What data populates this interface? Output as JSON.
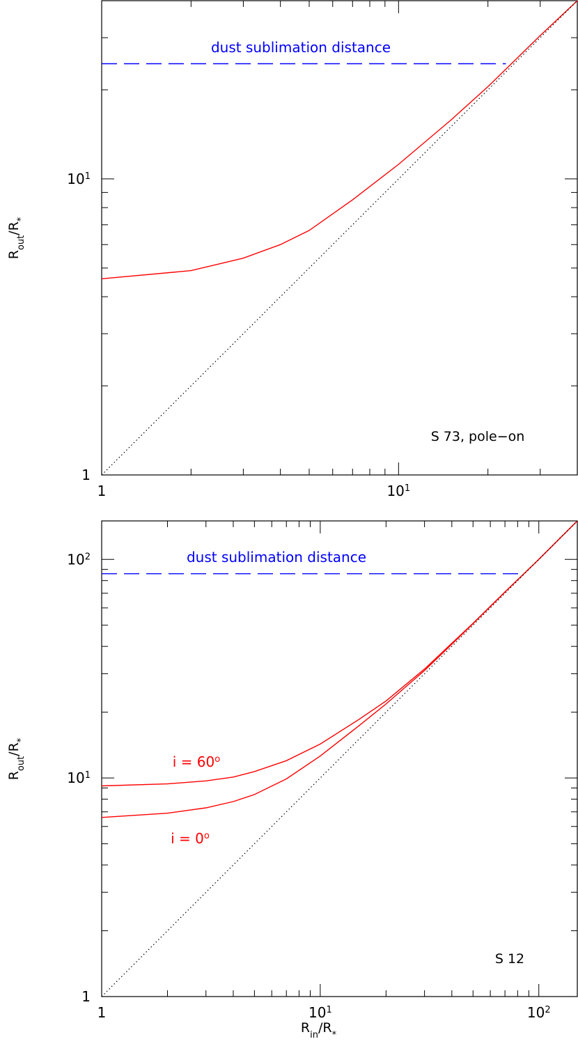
{
  "chart_data": [
    {
      "type": "line",
      "xscale": "log",
      "yscale": "log",
      "xlim": [
        1,
        40
      ],
      "ylim": [
        1,
        40
      ],
      "xlabel": "",
      "ylabel": {
        "main": "R",
        "sub": "out",
        "tail": "/R",
        "subtail": "*"
      },
      "x_ticks": [
        {
          "value": 1,
          "base": "1",
          "exp": ""
        },
        {
          "value": 10,
          "base": "10",
          "exp": "1"
        }
      ],
      "y_ticks": [
        {
          "value": 1,
          "base": "1",
          "exp": ""
        },
        {
          "value": 10,
          "base": "10",
          "exp": "1"
        }
      ],
      "annotations": [
        {
          "id": "dust",
          "text": "dust sublimation distance",
          "color": "#0000ff"
        },
        {
          "id": "label",
          "text": "S 73, pole−on",
          "color": "#000000"
        }
      ],
      "series": [
        {
          "style": "dashed",
          "color": "#0000ff",
          "x": [
            1,
            23
          ],
          "y": [
            24.5,
            24.5
          ]
        },
        {
          "style": "solid",
          "color": "#ff0000",
          "x": [
            1,
            2,
            3,
            4,
            5,
            7,
            10,
            15,
            20,
            25,
            30,
            40
          ],
          "y": [
            4.6,
            4.9,
            5.4,
            6.0,
            6.7,
            8.5,
            11.2,
            15.8,
            20.5,
            25.5,
            30.5,
            40
          ]
        },
        {
          "style": "dotted",
          "color": "#000000",
          "x": [
            1,
            40
          ],
          "y": [
            1,
            40
          ]
        }
      ]
    },
    {
      "type": "line",
      "xscale": "log",
      "yscale": "log",
      "xlim": [
        1,
        150
      ],
      "ylim": [
        1,
        150
      ],
      "xlabel": {
        "main": "R",
        "sub": "in",
        "tail": "/R",
        "subtail": "*"
      },
      "ylabel": {
        "main": "R",
        "sub": "out",
        "tail": "/R",
        "subtail": "*"
      },
      "x_ticks": [
        {
          "value": 1,
          "base": "1",
          "exp": ""
        },
        {
          "value": 10,
          "base": "10",
          "exp": "1"
        },
        {
          "value": 100,
          "base": "10",
          "exp": "2"
        }
      ],
      "y_ticks": [
        {
          "value": 1,
          "base": "1",
          "exp": ""
        },
        {
          "value": 10,
          "base": "10",
          "exp": "1"
        },
        {
          "value": 100,
          "base": "10",
          "exp": "2"
        }
      ],
      "annotations": [
        {
          "id": "dust",
          "text": "dust sublimation distance",
          "color": "#0000ff"
        },
        {
          "id": "label",
          "text": "S 12",
          "color": "#000000"
        },
        {
          "id": "i60",
          "text": "i = 60",
          "sup": "o",
          "color": "#ff0000"
        },
        {
          "id": "i0",
          "text": "i = 0",
          "sup": "o",
          "color": "#ff0000"
        }
      ],
      "series": [
        {
          "style": "dashed",
          "color": "#0000ff",
          "x": [
            1,
            85
          ],
          "y": [
            86,
            86
          ]
        },
        {
          "style": "solid",
          "color": "#ff0000",
          "x": [
            1,
            2,
            3,
            4,
            5,
            7,
            10,
            15,
            20,
            30,
            50,
            70,
            100,
            150
          ],
          "y": [
            9.2,
            9.4,
            9.7,
            10.1,
            10.7,
            12.0,
            14.3,
            18.5,
            22.5,
            31.5,
            51,
            71,
            100,
            150
          ]
        },
        {
          "style": "solid",
          "color": "#ff0000",
          "x": [
            1,
            2,
            3,
            4,
            5,
            7,
            10,
            15,
            20,
            30,
            50,
            70,
            100,
            150
          ],
          "y": [
            6.6,
            6.9,
            7.3,
            7.8,
            8.4,
            9.9,
            12.6,
            17.3,
            21.8,
            31,
            50.8,
            70.8,
            100,
            150
          ]
        },
        {
          "style": "dotted",
          "color": "#000000",
          "x": [
            1,
            150
          ],
          "y": [
            1,
            150
          ]
        }
      ]
    }
  ]
}
